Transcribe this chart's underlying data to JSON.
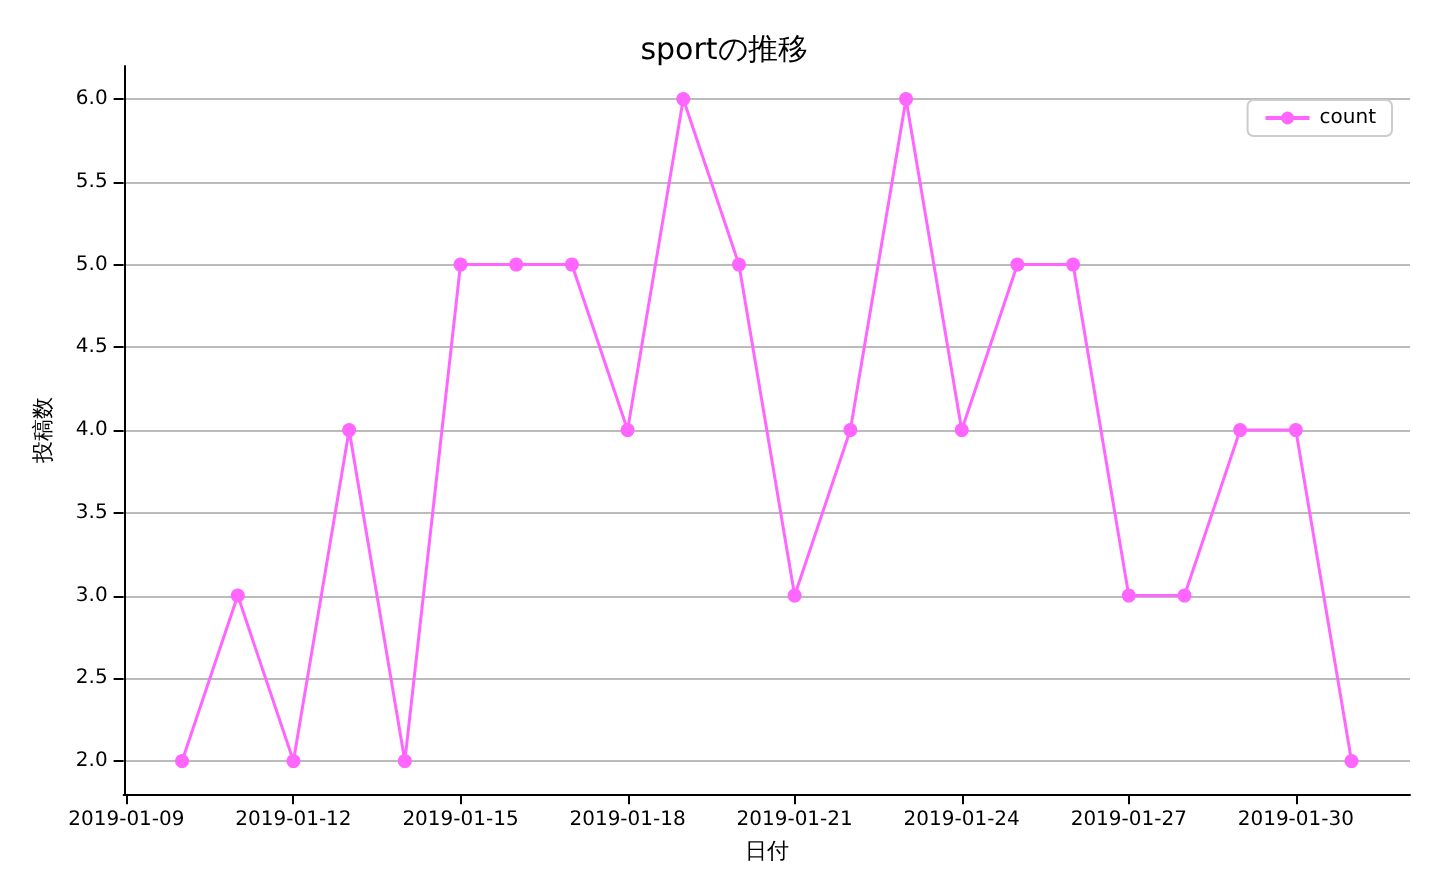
{
  "chart_data": {
    "type": "line",
    "title": "sportの推移",
    "xlabel": "日付",
    "ylabel": "投稿数",
    "x": [
      "2019-01-10",
      "2019-01-11",
      "2019-01-12",
      "2019-01-13",
      "2019-01-14",
      "2019-01-15",
      "2019-01-16",
      "2019-01-17",
      "2019-01-18",
      "2019-01-19",
      "2019-01-20",
      "2019-01-21",
      "2019-01-22",
      "2019-01-23",
      "2019-01-24",
      "2019-01-25",
      "2019-01-26",
      "2019-01-27",
      "2019-01-28",
      "2019-01-29",
      "2019-01-30",
      "2019-01-31"
    ],
    "series": [
      {
        "name": "count",
        "color": "#ff66ff",
        "values": [
          2,
          3,
          2,
          4,
          2,
          5,
          5,
          5,
          4,
          6,
          5,
          3,
          4,
          6,
          4,
          5,
          5,
          3,
          3,
          4,
          4,
          2
        ]
      }
    ],
    "xlim": [
      "2019-01-08T22:48",
      "2019-02-01T01:12"
    ],
    "xticks": [
      "2019-01-09",
      "2019-01-12",
      "2019-01-15",
      "2019-01-18",
      "2019-01-21",
      "2019-01-24",
      "2019-01-27",
      "2019-01-30"
    ],
    "ylim": [
      1.8,
      6.2
    ],
    "yticks": [
      {
        "value": 2,
        "label": "2.0"
      },
      {
        "value": 2.5,
        "label": "2.5"
      },
      {
        "value": 3,
        "label": "3.0"
      },
      {
        "value": 3.5,
        "label": "3.5"
      },
      {
        "value": 4,
        "label": "4.0"
      },
      {
        "value": 4.5,
        "label": "4.5"
      },
      {
        "value": 5,
        "label": "5.0"
      },
      {
        "value": 5.5,
        "label": "5.5"
      },
      {
        "value": 6,
        "label": "6.0"
      }
    ],
    "grid": "y",
    "legend": "top right",
    "marker": "circle",
    "line_style": "solid"
  }
}
